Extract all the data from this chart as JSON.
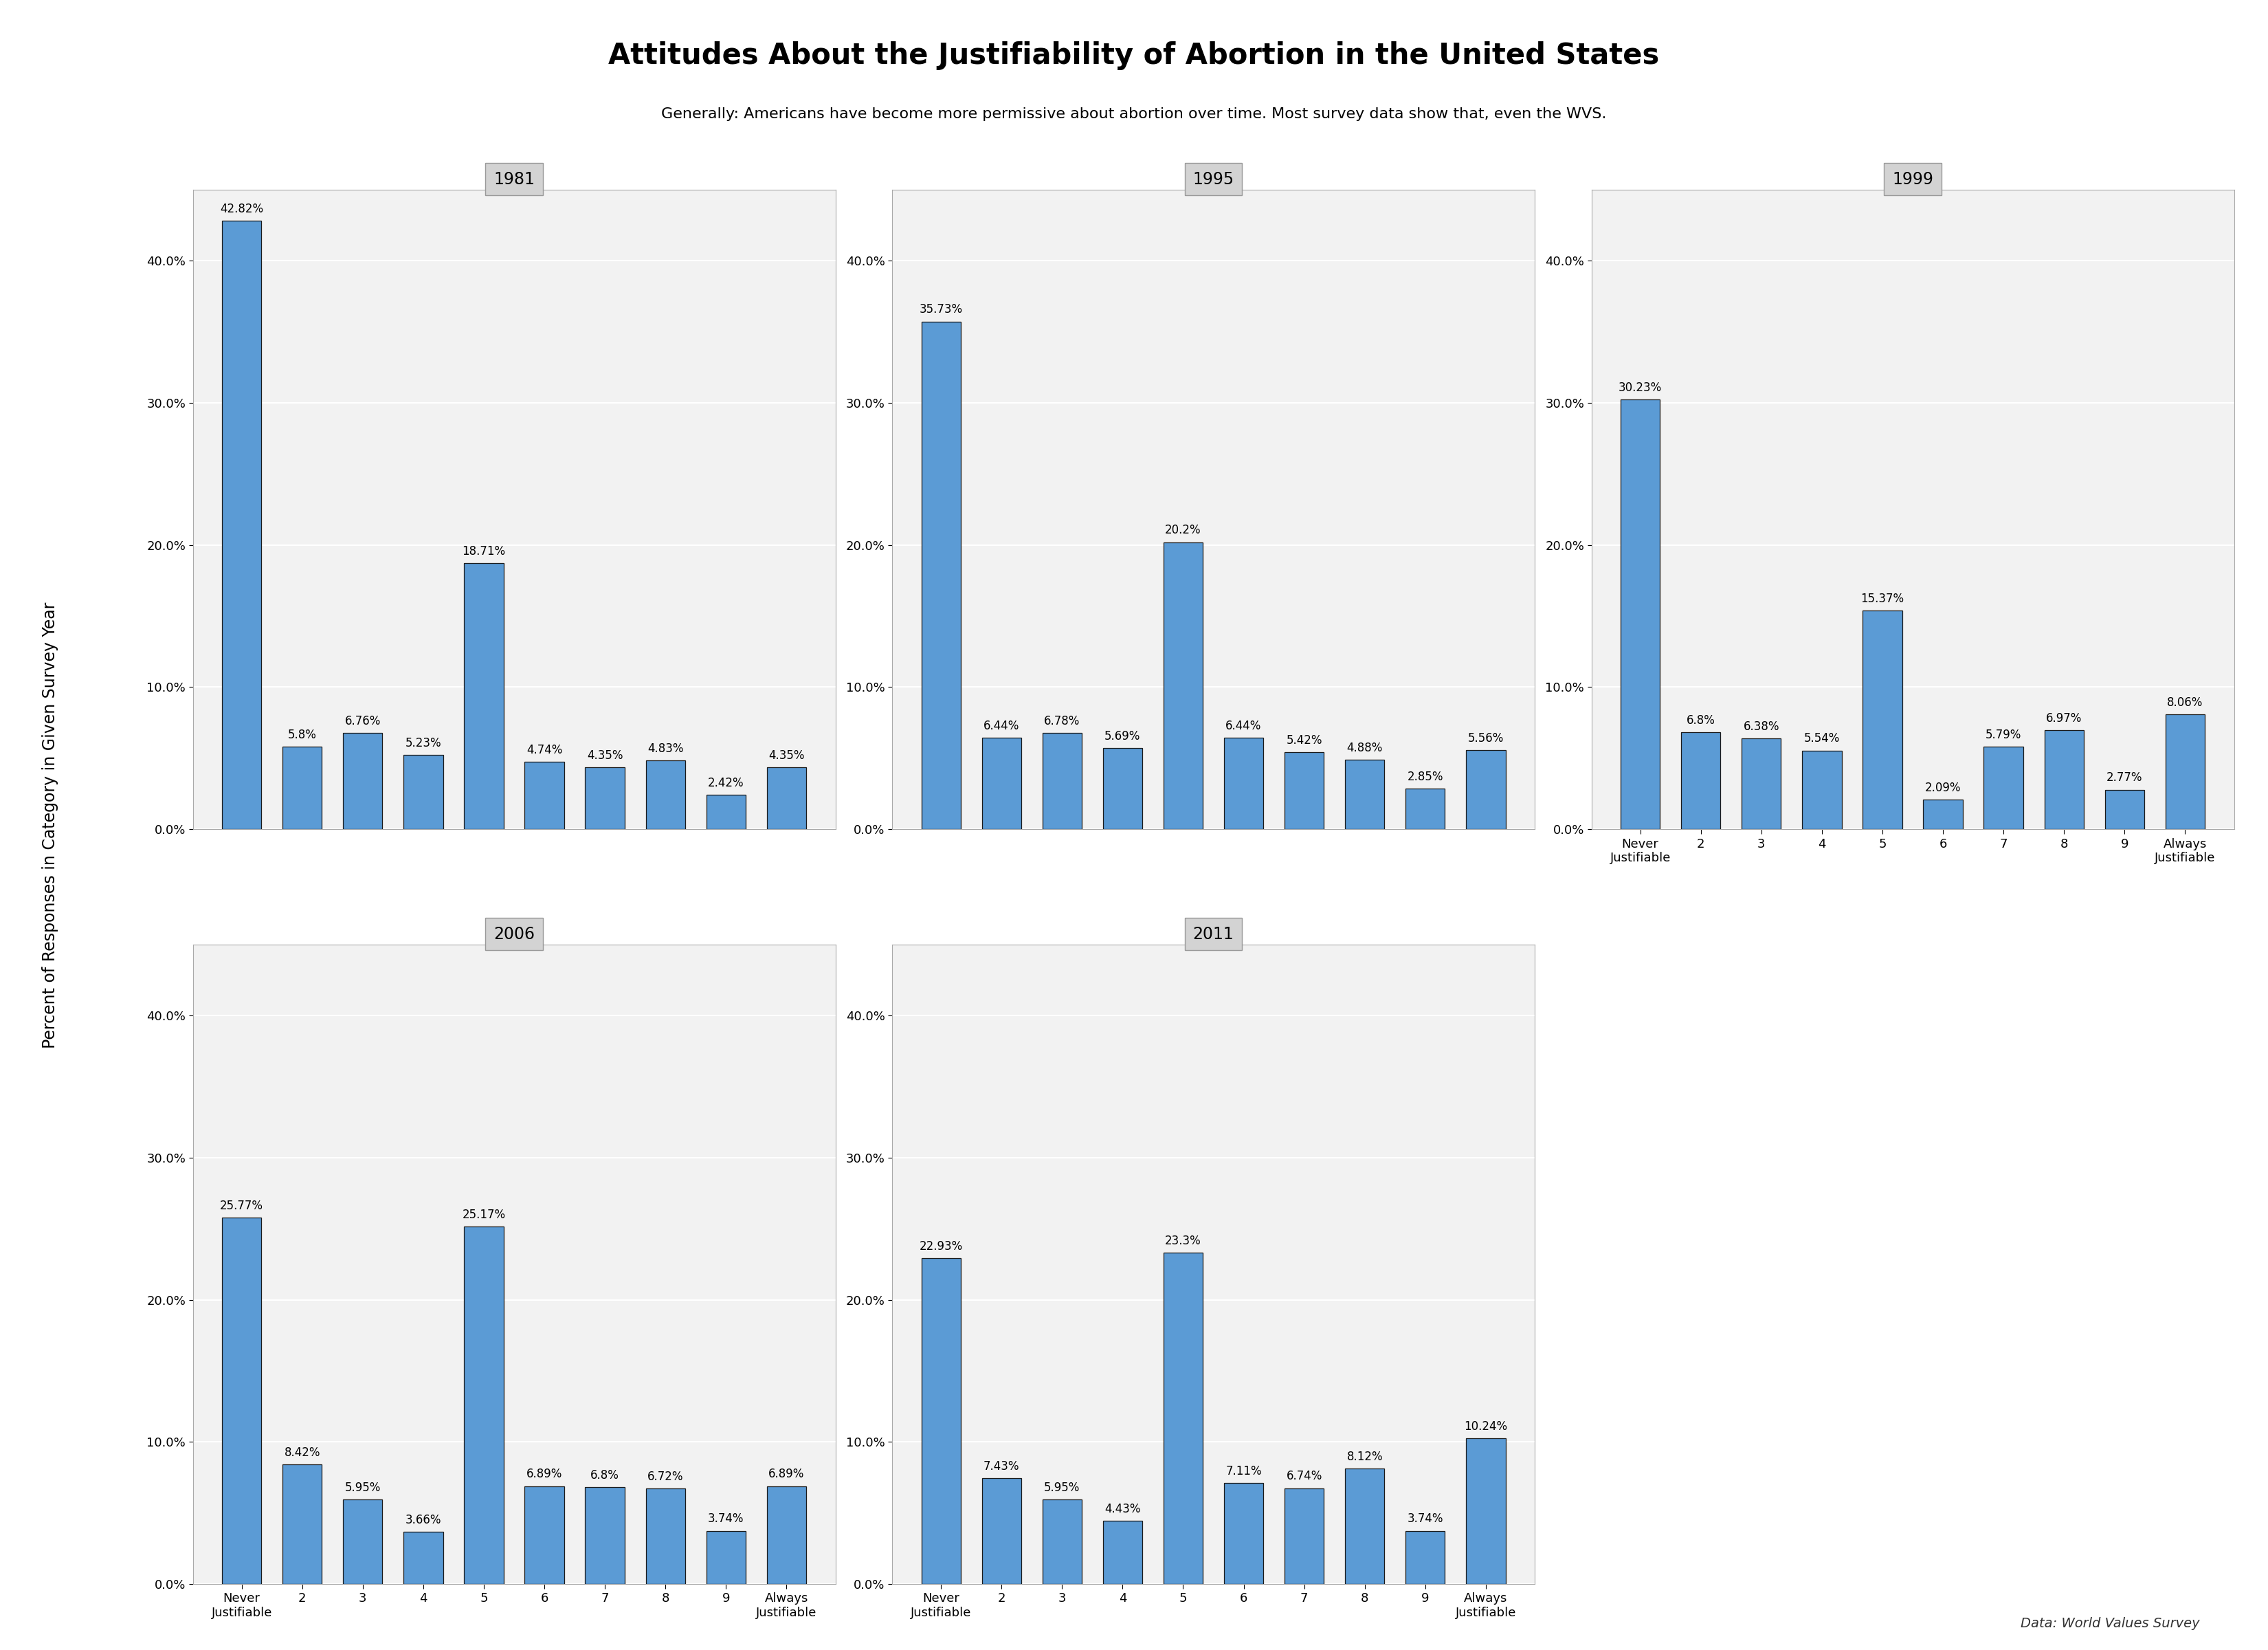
{
  "title": "Attitudes About the Justifiability of Abortion in the United States",
  "subtitle": "Generally: Americans have become more permissive about abortion over time. Most survey data show that, even the WVS.",
  "ylabel": "Percent of Responses in Category in Given Survey Year",
  "source": "Data: World Values Survey",
  "bar_color": "#5B9BD5",
  "bar_edgecolor": "#1a1a1a",
  "background_color": "#ffffff",
  "panel_bg": "#f2f2f2",
  "grid_color": "#ffffff",
  "title_bg": "#d3d3d3",
  "years": [
    "1981",
    "1995",
    "1999",
    "2006",
    "2011"
  ],
  "x_labels": [
    "Never\nJustifiable",
    "2",
    "3",
    "4",
    "5",
    "6",
    "7",
    "8",
    "9",
    "Always\nJustifiable"
  ],
  "data": {
    "1981": [
      42.82,
      5.8,
      6.76,
      5.23,
      18.71,
      4.74,
      4.35,
      4.83,
      2.42,
      4.35
    ],
    "1995": [
      35.73,
      6.44,
      6.78,
      5.69,
      20.2,
      6.44,
      5.42,
      4.88,
      2.85,
      5.56
    ],
    "1999": [
      30.23,
      6.8,
      6.38,
      5.54,
      15.37,
      2.09,
      5.79,
      6.97,
      2.77,
      8.06
    ],
    "2006": [
      25.77,
      8.42,
      5.95,
      3.66,
      25.17,
      6.89,
      6.8,
      6.72,
      3.74,
      6.89
    ],
    "2011": [
      22.93,
      7.43,
      5.95,
      4.43,
      23.3,
      7.11,
      6.74,
      8.12,
      3.74,
      10.24
    ]
  },
  "ylim": [
    0,
    45
  ],
  "yticks": [
    0,
    10,
    20,
    30,
    40
  ],
  "ytick_labels": [
    "0.0%",
    "10.0%",
    "20.0%",
    "30.0%",
    "40.0%"
  ],
  "label_fontsize": 13,
  "tick_fontsize": 13,
  "title_fontsize": 30,
  "subtitle_fontsize": 16,
  "facet_fontsize": 17,
  "ylabel_fontsize": 17,
  "source_fontsize": 14,
  "bar_label_fontsize": 12
}
